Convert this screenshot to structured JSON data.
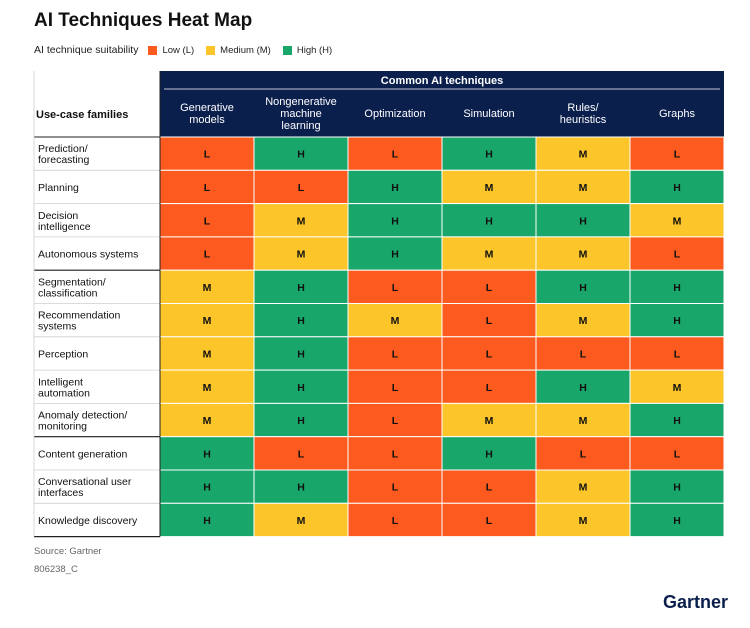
{
  "title": "AI Techniques Heat Map",
  "legend": {
    "title": "AI technique suitability",
    "items": [
      {
        "label": "Low (L)",
        "key": "L",
        "color": "#fc5a1f"
      },
      {
        "label": "Medium (M)",
        "key": "M",
        "color": "#fcc52a"
      },
      {
        "label": "High (H)",
        "key": "H",
        "color": "#19a66a"
      }
    ]
  },
  "source": "Source: Gartner",
  "code": "806238_C",
  "brand": "Gartner",
  "chart_data": {
    "type": "heatmap",
    "title": "AI Techniques Heat Map",
    "column_group_label": "Common AI techniques",
    "row_header_label": "Use-case families",
    "columns": [
      "Generative models",
      "Nongenerative machine learning",
      "Optimization",
      "Simulation",
      "Rules/ heuristics",
      "Graphs"
    ],
    "rows": [
      "Prediction/ forecasting",
      "Planning",
      "Decision intelligence",
      "Autonomous systems",
      "Segmentation/ classification",
      "Recommendation systems",
      "Perception",
      "Intelligent automation",
      "Anomaly detection/ monitoring",
      "Content generation",
      "Conversational user interfaces",
      "Knowledge discovery"
    ],
    "row_groups": [
      [
        0,
        3
      ],
      [
        4,
        8
      ],
      [
        9,
        11
      ]
    ],
    "values": [
      [
        "L",
        "H",
        "L",
        "H",
        "M",
        "L"
      ],
      [
        "L",
        "L",
        "H",
        "M",
        "M",
        "H"
      ],
      [
        "L",
        "M",
        "H",
        "H",
        "H",
        "M"
      ],
      [
        "L",
        "M",
        "H",
        "M",
        "M",
        "L"
      ],
      [
        "M",
        "H",
        "L",
        "L",
        "H",
        "H"
      ],
      [
        "M",
        "H",
        "M",
        "L",
        "M",
        "H"
      ],
      [
        "M",
        "H",
        "L",
        "L",
        "L",
        "L"
      ],
      [
        "M",
        "H",
        "L",
        "L",
        "H",
        "M"
      ],
      [
        "M",
        "H",
        "L",
        "M",
        "M",
        "H"
      ],
      [
        "H",
        "L",
        "L",
        "H",
        "L",
        "L"
      ],
      [
        "H",
        "H",
        "L",
        "L",
        "M",
        "H"
      ],
      [
        "H",
        "M",
        "L",
        "L",
        "M",
        "H"
      ]
    ],
    "colors": {
      "L": "#fc5a1f",
      "M": "#fcc52a",
      "H": "#19a66a",
      "header": "#0b1f4d"
    }
  }
}
